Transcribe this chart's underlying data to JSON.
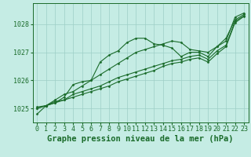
{
  "title": "Graphe pression niveau de la mer (hPa)",
  "xlabel_hours": [
    0,
    1,
    2,
    3,
    4,
    5,
    6,
    7,
    8,
    9,
    10,
    11,
    12,
    13,
    14,
    15,
    16,
    17,
    18,
    19,
    20,
    21,
    22,
    23
  ],
  "ylim": [
    1024.5,
    1028.75
  ],
  "yticks": [
    1025,
    1026,
    1027,
    1028
  ],
  "background_color": "#c5ece4",
  "grid_color": "#9dcfc6",
  "line_color": "#1a6b2a",
  "lines": [
    [
      1024.8,
      1025.1,
      1025.2,
      1025.4,
      1025.85,
      1025.95,
      1026.0,
      1026.65,
      1026.9,
      1027.05,
      1027.35,
      1027.5,
      1027.5,
      1027.3,
      1027.25,
      1027.15,
      1026.85,
      1027.0,
      1027.0,
      1026.85,
      1027.2,
      1027.4,
      1028.25,
      1028.4
    ],
    [
      1025.0,
      1025.1,
      1025.3,
      1025.5,
      1025.6,
      1025.8,
      1026.0,
      1026.2,
      1026.4,
      1026.6,
      1026.8,
      1027.0,
      1027.1,
      1027.2,
      1027.3,
      1027.4,
      1027.35,
      1027.1,
      1027.05,
      1027.0,
      1027.2,
      1027.5,
      1028.15,
      1028.35
    ],
    [
      1025.0,
      1025.1,
      1025.25,
      1025.3,
      1025.5,
      1025.6,
      1025.7,
      1025.8,
      1025.95,
      1026.1,
      1026.2,
      1026.3,
      1026.4,
      1026.5,
      1026.6,
      1026.7,
      1026.75,
      1026.85,
      1026.9,
      1026.75,
      1027.05,
      1027.25,
      1028.1,
      1028.3
    ],
    [
      1025.05,
      1025.1,
      1025.2,
      1025.3,
      1025.4,
      1025.5,
      1025.6,
      1025.7,
      1025.8,
      1025.95,
      1026.05,
      1026.15,
      1026.25,
      1026.35,
      1026.5,
      1026.6,
      1026.65,
      1026.75,
      1026.8,
      1026.65,
      1026.95,
      1027.2,
      1028.05,
      1028.28
    ]
  ],
  "title_fontsize": 7.5,
  "tick_fontsize": 6,
  "title_color": "#1a6b2a",
  "tick_color": "#1a6b2a",
  "fig_width": 3.2,
  "fig_height": 2.0,
  "dpi": 100
}
